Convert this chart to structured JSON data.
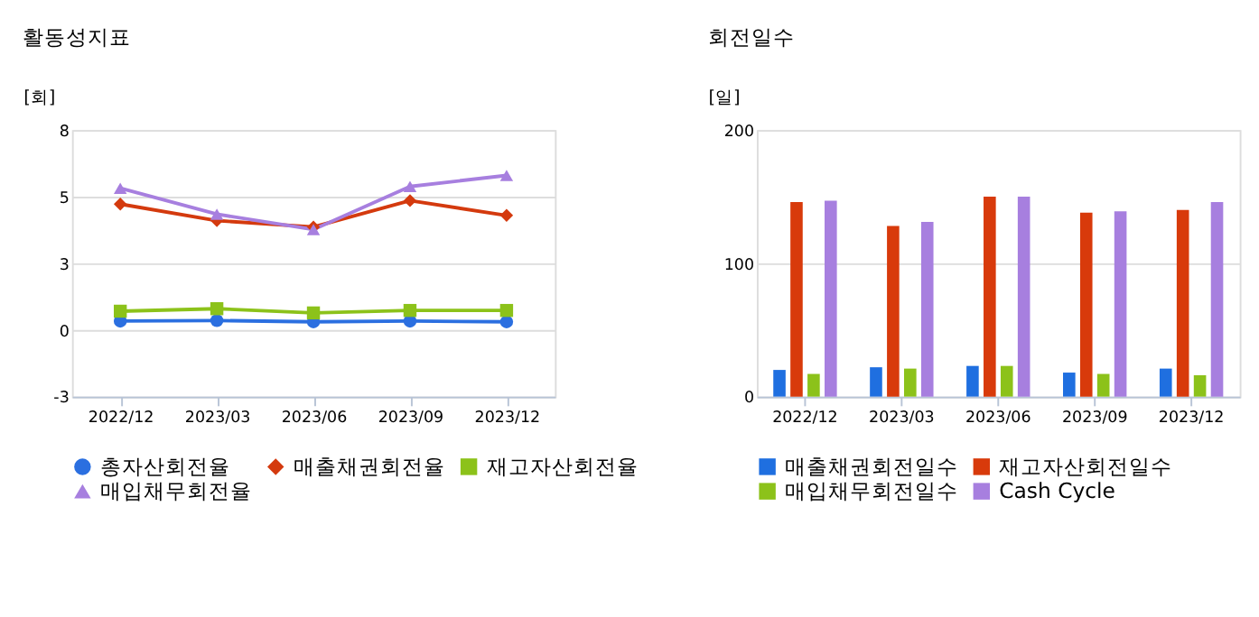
{
  "chart_data": [
    {
      "type": "line",
      "title": "활동성지표",
      "ylabel": "[회]",
      "categories": [
        "2022/12",
        "2023/03",
        "2023/06",
        "2023/09",
        "2023/12"
      ],
      "series": [
        {
          "name": "총자산회전율",
          "color": "#2b6fe0",
          "marker": "circle",
          "values": [
            0.36,
            0.38,
            0.33,
            0.36,
            0.33
          ]
        },
        {
          "name": "매출채권회전율",
          "color": "#d43a0e",
          "marker": "diamond",
          "values": [
            5.1,
            4.43,
            4.17,
            5.24,
            4.64
          ]
        },
        {
          "name": "재고자산회전율",
          "color": "#8cc21a",
          "marker": "square",
          "values": [
            0.76,
            0.86,
            0.69,
            0.79,
            0.79
          ]
        },
        {
          "name": "매입채무회전율",
          "color": "#a77fdf",
          "marker": "triangle",
          "values": [
            5.74,
            4.69,
            4.07,
            5.81,
            6.26
          ]
        }
      ],
      "ylim": [
        -2.7,
        8.1
      ],
      "yticks": [
        {
          "value": -2.7,
          "label": "-3"
        },
        {
          "value": 0,
          "label": "0"
        },
        {
          "value": 2.7,
          "label": "3"
        },
        {
          "value": 5.4,
          "label": "5"
        },
        {
          "value": 8.1,
          "label": "8"
        }
      ],
      "grid": "y",
      "legend": "bottom",
      "line_style": "solid"
    },
    {
      "type": "bar",
      "title": "회전일수",
      "ylabel": "[일]",
      "categories": [
        "2022/12",
        "2023/03",
        "2023/06",
        "2023/09",
        "2023/12"
      ],
      "series": [
        {
          "name": "매출채권회전일수",
          "color": "#1f6fe0",
          "values": [
            20,
            22,
            23,
            18,
            21
          ]
        },
        {
          "name": "재고자산회전일수",
          "color": "#d83a0b",
          "values": [
            146,
            128,
            150,
            138,
            140
          ]
        },
        {
          "name": "매입채무회전일수",
          "color": "#8cc21a",
          "values": [
            17,
            21,
            23,
            17,
            16
          ]
        },
        {
          "name": "Cash Cycle",
          "color": "#a77fdf",
          "values": [
            147,
            131,
            150,
            139,
            146
          ]
        }
      ],
      "ylim": [
        0,
        200
      ],
      "yticks": [
        0,
        100,
        200
      ],
      "grid": "y",
      "legend": "bottom"
    }
  ]
}
